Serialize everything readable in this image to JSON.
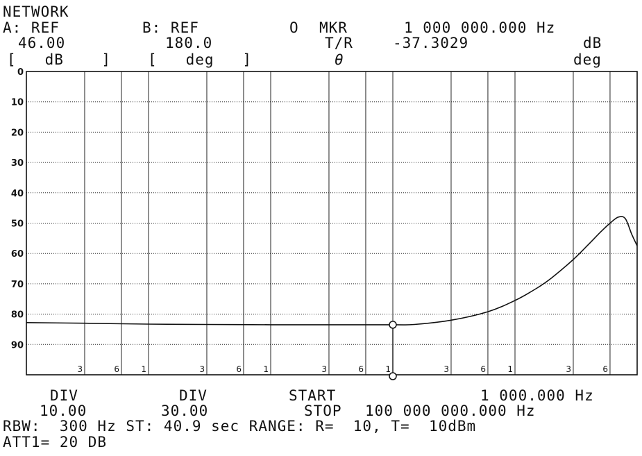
{
  "header": {
    "mode": "NETWORK",
    "a_label": "A: REF",
    "a_value": "46.00",
    "a_unit": "[   dB    ]",
    "b_label": "B: REF",
    "b_value": "180.0",
    "b_unit": "[   deg   ]",
    "marker_symbol": "O",
    "marker_label": "MKR",
    "marker_freq": "1 000 000.000 Hz",
    "tr_label": "T/R",
    "tr_value": "-37.3029",
    "tr_unit": "dB",
    "theta_label": "θ",
    "theta_unit": "deg"
  },
  "footer": {
    "div_a_label": "DIV",
    "div_a_value": "10.00",
    "div_b_label": "DIV",
    "div_b_value": "30.00",
    "start_label": "START",
    "start_value": "1 000.000 Hz",
    "stop_label": "STOP",
    "stop_value": "100 000 000.000 Hz",
    "rbw_line": "RBW:  300 Hz ST: 40.9 sec RANGE: R=  10, T=  10dBm",
    "att_line": "ATT1= 20 DB"
  },
  "chart_data": {
    "type": "line",
    "title": "",
    "xlabel": "",
    "ylabel": "",
    "x_scale": "log",
    "x_unit": "Hz",
    "xlim": [
      1000,
      100000000
    ],
    "ylim": [
      0,
      100
    ],
    "y_inverted": true,
    "grid": true,
    "y_tick_labels": [
      "0",
      "10",
      "20",
      "30",
      "40",
      "50",
      "60",
      "70",
      "80",
      "90"
    ],
    "x_minor_tick_labels": [
      "3",
      "6",
      "1",
      "3",
      "6",
      "1",
      "3",
      "6",
      "1",
      "3",
      "6",
      "1",
      "3",
      "6"
    ],
    "marker": {
      "x": 1000000,
      "y": 83.5
    },
    "series": [
      {
        "x": [
          1000,
          3000,
          10000,
          30000,
          100000,
          300000,
          1000000,
          1500000,
          3000000,
          6000000,
          10000000,
          15000000,
          20000000,
          30000000,
          40000000,
          50000000,
          60000000,
          70000000,
          80000000,
          90000000,
          100000000
        ],
        "y": [
          82.8,
          83.0,
          83.3,
          83.4,
          83.5,
          83.5,
          83.5,
          83.4,
          82.0,
          79.2,
          75.5,
          71.5,
          68.0,
          62.0,
          57.0,
          53.0,
          50.0,
          48.0,
          48.5,
          53.5,
          57.5
        ]
      }
    ]
  }
}
